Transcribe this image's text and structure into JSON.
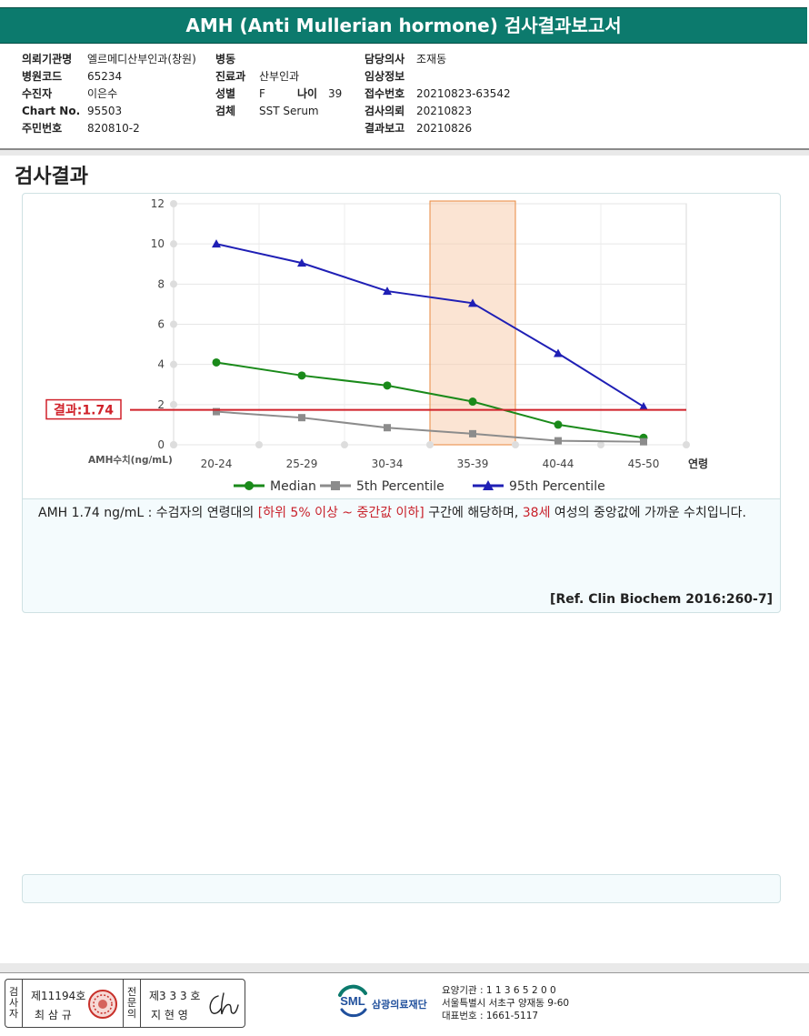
{
  "report": {
    "title": "AMH (Anti Mullerian hormone) 검사결과보고서",
    "section_title": "검사결과"
  },
  "info": {
    "col1": [
      {
        "label": "의뢰기관명",
        "value": "엘르메디산부인과(창원)"
      },
      {
        "label": "병원코드",
        "value": "65234"
      },
      {
        "label": "수진자",
        "value": "이은수"
      },
      {
        "label": "Chart No.",
        "value": "95503"
      },
      {
        "label": "주민번호",
        "value": "820810-2"
      }
    ],
    "col2": [
      {
        "label": "병동",
        "value": ""
      },
      {
        "label": "진료과",
        "value": "산부인과"
      },
      {
        "label": "성별",
        "value": "F"
      },
      {
        "label": "검체",
        "value": "SST Serum"
      }
    ],
    "age": {
      "label": "나이",
      "value": "39"
    },
    "col3": [
      {
        "label": "담당의사",
        "value": "조재동"
      },
      {
        "label": "임상정보",
        "value": ""
      },
      {
        "label": "접수번호",
        "value": "20210823-63542"
      },
      {
        "label": "검사의뢰",
        "value": "20210823"
      },
      {
        "label": "결과보고",
        "value": "20210826"
      }
    ]
  },
  "chart_data": {
    "type": "line",
    "categories": [
      "20-24",
      "25-29",
      "30-34",
      "35-39",
      "40-44",
      "45-50"
    ],
    "x_axis_end_label": "연령",
    "ylabel": "AMH수치(ng/mL)",
    "ylim": [
      0,
      12
    ],
    "yticks": [
      "0",
      "2",
      "4",
      "6",
      "8",
      "10",
      "12"
    ],
    "grid": true,
    "legend_position": "bottom",
    "highlight_category": "35-39",
    "result_line": {
      "value": 1.74,
      "label": "결과:1.74",
      "color": "#d0212a"
    },
    "series": [
      {
        "name": "Median",
        "marker": "circle",
        "color": "#1a8a1a",
        "values": [
          4.1,
          3.45,
          2.95,
          2.15,
          1.0,
          0.35
        ]
      },
      {
        "name": "5th Percentile",
        "marker": "square",
        "color": "#8c8c8c",
        "values": [
          1.65,
          1.35,
          0.85,
          0.55,
          0.2,
          0.15
        ]
      },
      {
        "name": "95th Percentile",
        "marker": "triangle",
        "color": "#1f1fb5",
        "values": [
          10.0,
          9.05,
          7.65,
          7.05,
          4.55,
          1.9
        ]
      }
    ]
  },
  "interpretation": {
    "part1": "AMH  1.74 ng/mL : 수검자의 연령대의 ",
    "highlight1": "[하위 5% 이상 ~ 중간값 이하]",
    "part2": "  구간에 해당하며, ",
    "highlight2": "38세",
    "part3": " 여성의 중앙값에 가까운 수치입니다.",
    "reference": "[Ref. Clin Biochem 2016:260-7]"
  },
  "footer": {
    "sign1": {
      "vertical_label": [
        "검",
        "사",
        "자"
      ],
      "license": "제11194호",
      "name": "최 삼 규"
    },
    "sign2": {
      "vertical_label": [
        "전",
        "문",
        "의"
      ],
      "license": "제3 3 3 호",
      "name": "지 현 영"
    },
    "logo_text": "SML",
    "org_name": "삼광의료재단",
    "org_lines": [
      "요양기관 : 1 1 3 6 5 2 0 0",
      "서울특별시 서초구 양재동 9-60",
      "대표번호 : 1661-5117"
    ]
  }
}
